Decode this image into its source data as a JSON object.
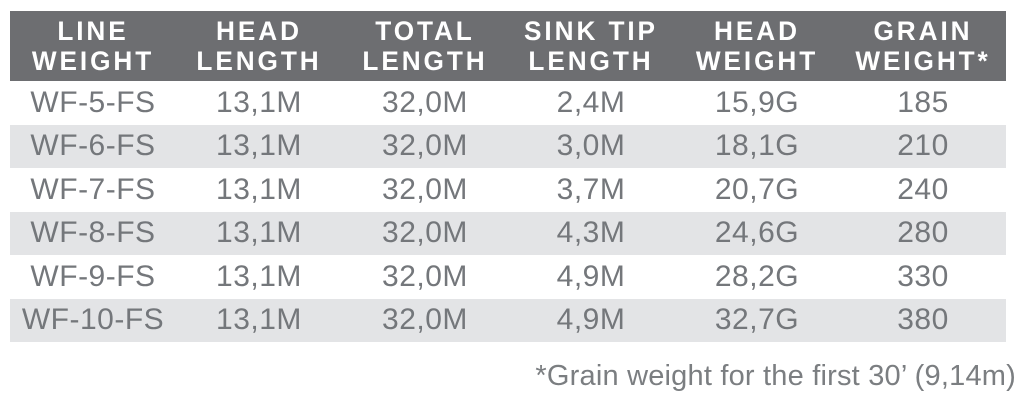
{
  "table": {
    "header": {
      "columns": [
        {
          "id": "line_weight",
          "line1": "LINE",
          "line2": "WEIGHT"
        },
        {
          "id": "head_length",
          "line1": "HEAD",
          "line2": "LENGTH"
        },
        {
          "id": "total_length",
          "line1": "TOTAL",
          "line2": "LENGTH"
        },
        {
          "id": "sink_tip_length",
          "line1": "SINK TIP",
          "line2": "LENGTH"
        },
        {
          "id": "head_weight",
          "line1": "HEAD",
          "line2": "WEIGHT"
        },
        {
          "id": "grain_weight",
          "line1": "GRAIN",
          "line2": "WEIGHT*"
        }
      ]
    },
    "rows": [
      {
        "line_weight": "WF-5-FS",
        "head_length": "13,1M",
        "total_length": "32,0M",
        "sink_tip_length": "2,4M",
        "head_weight": "15,9G",
        "grain_weight": "185"
      },
      {
        "line_weight": "WF-6-FS",
        "head_length": "13,1M",
        "total_length": "32,0M",
        "sink_tip_length": "3,0M",
        "head_weight": "18,1G",
        "grain_weight": "210"
      },
      {
        "line_weight": "WF-7-FS",
        "head_length": "13,1M",
        "total_length": "32,0M",
        "sink_tip_length": "3,7M",
        "head_weight": "20,7G",
        "grain_weight": "240"
      },
      {
        "line_weight": "WF-8-FS",
        "head_length": "13,1M",
        "total_length": "32,0M",
        "sink_tip_length": "4,3M",
        "head_weight": "24,6G",
        "grain_weight": "280"
      },
      {
        "line_weight": "WF-9-FS",
        "head_length": "13,1M",
        "total_length": "32,0M",
        "sink_tip_length": "4,9M",
        "head_weight": "28,2G",
        "grain_weight": "330"
      },
      {
        "line_weight": "WF-10-FS",
        "head_length": "13,1M",
        "total_length": "32,0M",
        "sink_tip_length": "4,9M",
        "head_weight": "32,7G",
        "grain_weight": "380"
      }
    ],
    "footnote": "*Grain weight for the first 30’ (9,14m)"
  },
  "colors": {
    "header_background": "#6d6e71",
    "header_text": "#ffffff",
    "row_stripe": "#e3e4e6",
    "row_background": "#ffffff",
    "data_text": "#74777b",
    "footnote_text": "#7b7e81"
  }
}
